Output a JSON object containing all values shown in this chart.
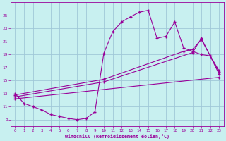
{
  "xlabel": "Windchill (Refroidissement éolien,°C)",
  "bg_color": "#c8f0f0",
  "grid_color": "#a0c8d8",
  "line_color": "#990099",
  "x_ticks": [
    0,
    1,
    2,
    3,
    4,
    5,
    6,
    7,
    8,
    9,
    10,
    11,
    12,
    13,
    14,
    15,
    16,
    17,
    18,
    19,
    20,
    21,
    22,
    23
  ],
  "y_ticks": [
    9,
    11,
    13,
    15,
    17,
    19,
    21,
    23,
    25
  ],
  "ylim": [
    8.0,
    27.0
  ],
  "xlim": [
    -0.5,
    23.5
  ],
  "line1_x": [
    0,
    1,
    2,
    3,
    4,
    5,
    6,
    7,
    8,
    9,
    10,
    11,
    12,
    13,
    14,
    15,
    16,
    17,
    18,
    19,
    20,
    21,
    22,
    23
  ],
  "line1_y": [
    13.0,
    11.5,
    11.0,
    10.5,
    9.8,
    9.5,
    9.2,
    9.0,
    9.2,
    10.2,
    19.2,
    22.5,
    24.0,
    24.8,
    25.5,
    25.8,
    21.5,
    21.8,
    24.0,
    20.0,
    19.5,
    19.0,
    18.8,
    16.5
  ],
  "line2_x": [
    0,
    10,
    19,
    20,
    21,
    23
  ],
  "line2_y": [
    12.8,
    15.2,
    19.5,
    19.8,
    21.3,
    16.3
  ],
  "line3_x": [
    0,
    10,
    20,
    21,
    23
  ],
  "line3_y": [
    12.5,
    14.8,
    19.3,
    21.5,
    16.0
  ],
  "line4_x": [
    0,
    23
  ],
  "line4_y": [
    12.2,
    15.5
  ]
}
